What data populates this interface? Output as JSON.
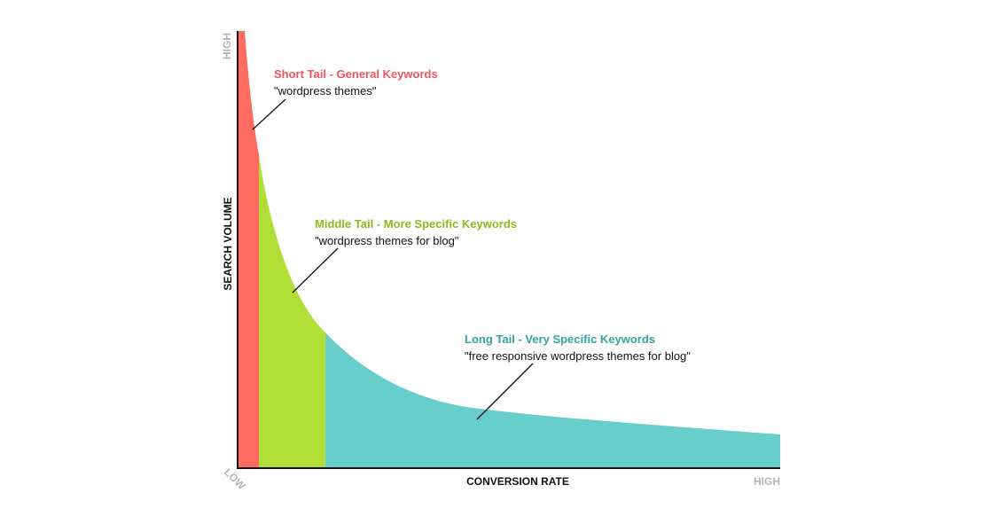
{
  "axes": {
    "y_label": "SEARCH VOLUME",
    "y_high": "HIGH",
    "x_label": "CONVERSION RATE",
    "x_low": "LOW",
    "x_high": "HIGH"
  },
  "segments": [
    {
      "title": "Short Tail - General Keywords",
      "example": "\"wordpress themes\""
    },
    {
      "title": "Middle Tail - More Specific Keywords",
      "example": "\"wordpress themes for blog\""
    },
    {
      "title": "Long Tail - Very Specific Keywords",
      "example": "\"free responsive wordpress themes for blog\""
    }
  ]
}
